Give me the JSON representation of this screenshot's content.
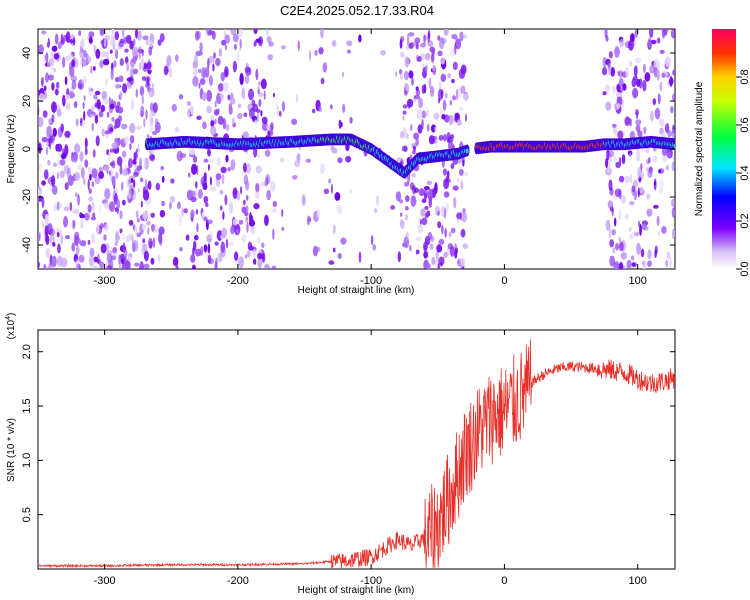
{
  "title": "C2E4.2025.052.17.33.R04",
  "chart_data": [
    {
      "type": "heatmap",
      "xlabel": "Height of straight line (km)",
      "ylabel": "Frequency (Hz)",
      "xlim": [
        -350,
        128
      ],
      "ylim": [
        -50,
        50
      ],
      "x_ticks": [
        -300,
        -200,
        -100,
        0,
        100
      ],
      "y_ticks": [
        -40,
        -20,
        0,
        20,
        40
      ],
      "colorbar": {
        "label": "Normalized spectral amplitude",
        "range": [
          0,
          1
        ],
        "ticks": [
          "0.0",
          "0.2",
          "0.4",
          "0.6",
          "0.8"
        ]
      },
      "ridge": {
        "description_points_x": [
          -268,
          -240,
          -200,
          -160,
          -130,
          -115,
          -100,
          -85,
          -75,
          -65,
          -50,
          -35,
          -25,
          -10,
          0,
          20,
          40,
          60,
          75,
          90,
          110,
          128
        ],
        "description_points_y": [
          2,
          3,
          2,
          3,
          4,
          4,
          0,
          -6,
          -10,
          -4,
          -3,
          -2,
          0,
          1,
          1,
          1,
          1,
          1,
          2,
          2,
          3,
          2
        ]
      },
      "grid": false
    },
    {
      "type": "line",
      "xlabel": "Height of straight line (km)",
      "ylabel": "SNR (10 * v/v)",
      "y_multiplier": "(x10^4)",
      "xlim": [
        -350,
        128
      ],
      "ylim": [
        0,
        2.2
      ],
      "x_ticks": [
        -300,
        -200,
        -100,
        0,
        100
      ],
      "y_ticks": [
        0.5,
        1.0,
        1.5,
        2.0
      ],
      "y_tick_labels": [
        "0.5",
        "1.0",
        "1.5",
        "2.0"
      ],
      "series_color": "#e8302a",
      "x": [
        -350,
        -300,
        -250,
        -200,
        -150,
        -120,
        -100,
        -90,
        -80,
        -70,
        -60,
        -50,
        -40,
        -30,
        -20,
        -10,
        0,
        10,
        20,
        30,
        40,
        50,
        60,
        70,
        80,
        90,
        100,
        110,
        120,
        128
      ],
      "values": [
        0.03,
        0.03,
        0.04,
        0.04,
        0.05,
        0.08,
        0.12,
        0.2,
        0.28,
        0.22,
        0.3,
        0.45,
        0.75,
        1.1,
        1.3,
        1.45,
        1.5,
        1.6,
        1.72,
        1.8,
        1.85,
        1.87,
        1.86,
        1.85,
        1.84,
        1.82,
        1.76,
        1.72,
        1.74,
        1.77
      ],
      "grid": false
    }
  ]
}
